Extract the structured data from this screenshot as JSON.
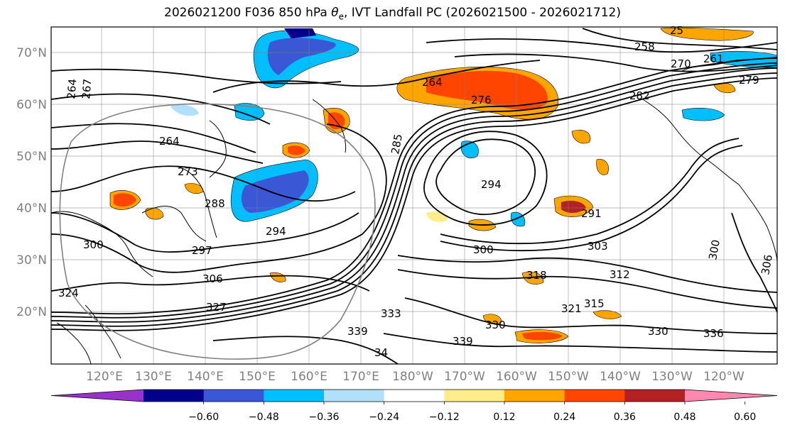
{
  "title": {
    "prefix": "2026021200 F036 850 hPa ",
    "symbol": "θ",
    "symbol_sub": "e",
    "suffix": ", IVT Landfall PC (2026021500 - 2026021712)"
  },
  "map": {
    "lat_ticks": [
      "70°N",
      "60°N",
      "50°N",
      "40°N",
      "30°N",
      "20°N"
    ],
    "lon_ticks": [
      "120°E",
      "130°E",
      "140°E",
      "150°E",
      "160°E",
      "170°E",
      "180°W",
      "170°W",
      "160°W",
      "150°W",
      "140°W",
      "130°W",
      "120°W"
    ]
  },
  "contour_labels": [
    "264",
    "267",
    "264",
    "273",
    "288",
    "294",
    "300",
    "297",
    "306",
    "324",
    "327",
    "333",
    "339",
    "34",
    "285",
    "294",
    "291",
    "300",
    "303",
    "318",
    "321",
    "315",
    "312",
    "330",
    "339",
    "336",
    "258",
    "270",
    "279",
    "282",
    "276",
    "264",
    "261",
    "25",
    "330",
    "306",
    "300"
  ],
  "colorbar": {
    "colors": [
      "#9932cc",
      "#00008b",
      "#3a57d6",
      "#00bfff",
      "#b0e0fa",
      "#ffffff",
      "#ffec8b",
      "#ffa500",
      "#ff4500",
      "#b22222",
      "#ff88b0"
    ],
    "ticks": [
      "−0.60",
      "−0.48",
      "−0.36",
      "−0.24",
      "−0.12",
      "0.12",
      "0.24",
      "0.36",
      "0.48",
      "0.60"
    ]
  },
  "colors": {
    "contour": "#000000",
    "grid": "#808080",
    "coast": "#000000"
  }
}
